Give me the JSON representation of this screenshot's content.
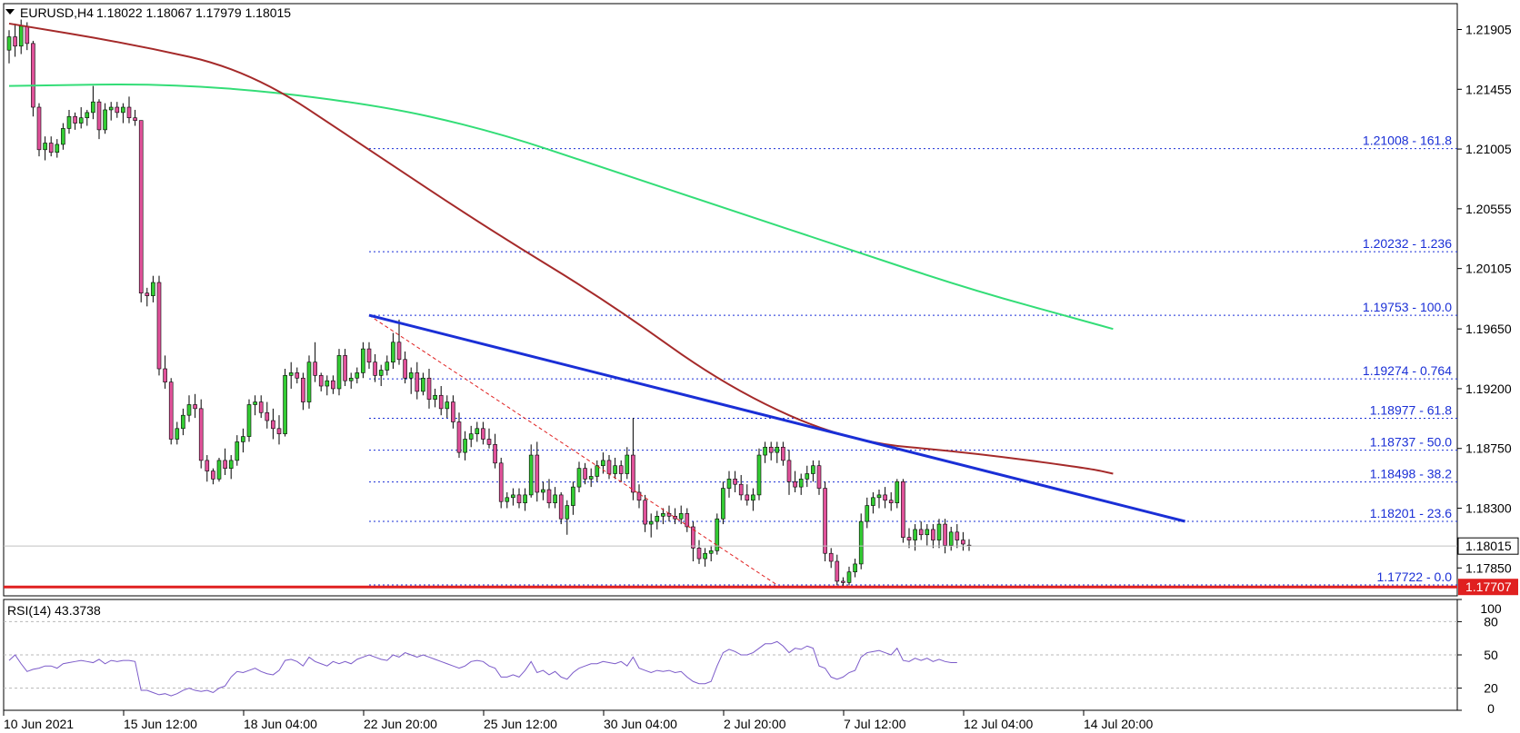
{
  "header": {
    "symbol": "EURUSD,H4",
    "ohlc": "1.18022 1.18067 1.17979 1.18015"
  },
  "rsi_label": "RSI(14) 43.3738",
  "current_price_label": "1.18015",
  "support_price_label": "1.17707",
  "colors": {
    "bull": "#33cc33",
    "bear": "#e0529a",
    "ma_fast": "#a52a2a",
    "ma_slow": "#33dd77",
    "trendline": "#1a2fd6",
    "fib": "#1a2fd6",
    "support": "#e02020",
    "rsi": "#7b5ac9"
  },
  "chart_data": {
    "type": "candlestick",
    "title": "EURUSD,H4",
    "price_axis": {
      "ylim": [
        1.1764,
        1.221
      ],
      "ticks": [
        "1.21905",
        "1.21455",
        "1.21005",
        "1.20555",
        "1.20105",
        "1.19650",
        "1.19200",
        "1.18750",
        "1.18300",
        "1.17850"
      ]
    },
    "time_axis": {
      "labels": [
        "10 Jun 2021",
        "15 Jun 12:00",
        "18 Jun 04:00",
        "22 Jun 20:00",
        "25 Jun 12:00",
        "30 Jun 04:00",
        "2 Jul 20:00",
        "7 Jul 12:00",
        "12 Jul 04:00",
        "14 Jul 20:00"
      ]
    },
    "candles": [
      [
        1.2175,
        1.219,
        1.2165,
        1.2185
      ],
      [
        1.2185,
        1.2195,
        1.217,
        1.2178
      ],
      [
        1.2178,
        1.2198,
        1.2172,
        1.2193
      ],
      [
        1.2193,
        1.2196,
        1.2175,
        1.218
      ],
      [
        1.218,
        1.2182,
        1.2125,
        1.2132
      ],
      [
        1.2132,
        1.2135,
        1.2095,
        1.21
      ],
      [
        1.21,
        1.211,
        1.2092,
        1.2105
      ],
      [
        1.2105,
        1.211,
        1.2095,
        1.2098
      ],
      [
        1.2098,
        1.2108,
        1.2094,
        1.2104
      ],
      [
        1.2104,
        1.212,
        1.21,
        1.2116
      ],
      [
        1.2116,
        1.213,
        1.2112,
        1.2125
      ],
      [
        1.2125,
        1.2128,
        1.2115,
        1.212
      ],
      [
        1.212,
        1.2132,
        1.2116,
        1.2124
      ],
      [
        1.2124,
        1.213,
        1.2118,
        1.2128
      ],
      [
        1.2128,
        1.2148,
        1.2123,
        1.2136
      ],
      [
        1.2136,
        1.2138,
        1.2108,
        1.2115
      ],
      [
        1.2115,
        1.2135,
        1.2112,
        1.213
      ],
      [
        1.213,
        1.2136,
        1.2122,
        1.2132
      ],
      [
        1.2132,
        1.2136,
        1.2124,
        1.2128
      ],
      [
        1.2128,
        1.2135,
        1.212,
        1.2132
      ],
      [
        1.2132,
        1.214,
        1.212,
        1.2124
      ],
      [
        1.2124,
        1.213,
        1.2118,
        1.2122
      ],
      [
        1.2122,
        1.2122,
        1.1985,
        1.1992
      ],
      [
        1.1992,
        1.1996,
        1.1982,
        1.199
      ],
      [
        1.199,
        1.2005,
        1.1985,
        1.2
      ],
      [
        1.2,
        1.2005,
        1.193,
        1.1935
      ],
      [
        1.1935,
        1.1945,
        1.192,
        1.1925
      ],
      [
        1.1925,
        1.1928,
        1.1878,
        1.1882
      ],
      [
        1.1882,
        1.1895,
        1.1878,
        1.189
      ],
      [
        1.189,
        1.1905,
        1.1885,
        1.19
      ],
      [
        1.19,
        1.1915,
        1.1895,
        1.1908
      ],
      [
        1.1908,
        1.1916,
        1.1898,
        1.1905
      ],
      [
        1.1905,
        1.1912,
        1.186,
        1.1866
      ],
      [
        1.1866,
        1.187,
        1.185,
        1.1858
      ],
      [
        1.1858,
        1.186,
        1.1848,
        1.1852
      ],
      [
        1.1852,
        1.1868,
        1.185,
        1.1866
      ],
      [
        1.1866,
        1.1875,
        1.1855,
        1.186
      ],
      [
        1.186,
        1.187,
        1.1852,
        1.1866
      ],
      [
        1.1866,
        1.1885,
        1.1862,
        1.188
      ],
      [
        1.188,
        1.189,
        1.1872,
        1.1884
      ],
      [
        1.1884,
        1.1912,
        1.188,
        1.1908
      ],
      [
        1.1908,
        1.1915,
        1.19,
        1.191
      ],
      [
        1.191,
        1.1915,
        1.1898,
        1.1902
      ],
      [
        1.1902,
        1.191,
        1.189,
        1.1896
      ],
      [
        1.1896,
        1.1905,
        1.1882,
        1.189
      ],
      [
        1.189,
        1.19,
        1.1878,
        1.1886
      ],
      [
        1.1886,
        1.1935,
        1.1884,
        1.193
      ],
      [
        1.193,
        1.194,
        1.192,
        1.1932
      ],
      [
        1.1932,
        1.1936,
        1.1924,
        1.1928
      ],
      [
        1.1928,
        1.1932,
        1.1904,
        1.191
      ],
      [
        1.191,
        1.1945,
        1.1905,
        1.194
      ],
      [
        1.194,
        1.1955,
        1.1925,
        1.193
      ],
      [
        1.193,
        1.1932,
        1.1918,
        1.1922
      ],
      [
        1.1922,
        1.193,
        1.1915,
        1.1926
      ],
      [
        1.1926,
        1.193,
        1.1916,
        1.192
      ],
      [
        1.192,
        1.195,
        1.1915,
        1.1945
      ],
      [
        1.1945,
        1.195,
        1.1922,
        1.1926
      ],
      [
        1.1926,
        1.1932,
        1.192,
        1.1928
      ],
      [
        1.1928,
        1.1936,
        1.1924,
        1.1932
      ],
      [
        1.1932,
        1.1955,
        1.1928,
        1.195
      ],
      [
        1.195,
        1.1955,
        1.1935,
        1.194
      ],
      [
        1.194,
        1.1946,
        1.1925,
        1.193
      ],
      [
        1.193,
        1.1938,
        1.1922,
        1.1934
      ],
      [
        1.1934,
        1.1945,
        1.193,
        1.194
      ],
      [
        1.194,
        1.1962,
        1.1935,
        1.1955
      ],
      [
        1.1955,
        1.1972,
        1.1938,
        1.1942
      ],
      [
        1.1942,
        1.1948,
        1.1924,
        1.1928
      ],
      [
        1.1928,
        1.1936,
        1.1916,
        1.1932
      ],
      [
        1.1932,
        1.194,
        1.1912,
        1.1918
      ],
      [
        1.1918,
        1.1932,
        1.1915,
        1.1928
      ],
      [
        1.1928,
        1.1935,
        1.1905,
        1.1912
      ],
      [
        1.1912,
        1.192,
        1.1906,
        1.1915
      ],
      [
        1.1915,
        1.1922,
        1.19,
        1.1905
      ],
      [
        1.1905,
        1.1915,
        1.1898,
        1.191
      ],
      [
        1.191,
        1.1915,
        1.189,
        1.1895
      ],
      [
        1.1895,
        1.1902,
        1.1868,
        1.1872
      ],
      [
        1.1872,
        1.1888,
        1.1866,
        1.1882
      ],
      [
        1.1882,
        1.1892,
        1.1876,
        1.1886
      ],
      [
        1.1886,
        1.1895,
        1.188,
        1.189
      ],
      [
        1.189,
        1.1895,
        1.1878,
        1.1882
      ],
      [
        1.1882,
        1.189,
        1.1875,
        1.1878
      ],
      [
        1.1878,
        1.1886,
        1.186,
        1.1864
      ],
      [
        1.1864,
        1.1868,
        1.183,
        1.1835
      ],
      [
        1.1835,
        1.1842,
        1.183,
        1.1838
      ],
      [
        1.1838,
        1.1845,
        1.1832,
        1.184
      ],
      [
        1.184,
        1.1845,
        1.183,
        1.1834
      ],
      [
        1.1834,
        1.1845,
        1.1828,
        1.184
      ],
      [
        1.184,
        1.1878,
        1.1838,
        1.187
      ],
      [
        1.187,
        1.188,
        1.1835,
        1.1842
      ],
      [
        1.1842,
        1.185,
        1.1836,
        1.1844
      ],
      [
        1.1844,
        1.1852,
        1.183,
        1.1834
      ],
      [
        1.1834,
        1.1846,
        1.183,
        1.184
      ],
      [
        1.184,
        1.1842,
        1.1818,
        1.1822
      ],
      [
        1.1822,
        1.1836,
        1.181,
        1.1832
      ],
      [
        1.1832,
        1.185,
        1.1825,
        1.1846
      ],
      [
        1.1846,
        1.1865,
        1.1842,
        1.186
      ],
      [
        1.186,
        1.1864,
        1.1848,
        1.1852
      ],
      [
        1.1852,
        1.186,
        1.1846,
        1.1854
      ],
      [
        1.1854,
        1.1866,
        1.185,
        1.1862
      ],
      [
        1.1862,
        1.1872,
        1.1856,
        1.1866
      ],
      [
        1.1866,
        1.187,
        1.1852,
        1.1856
      ],
      [
        1.1856,
        1.1868,
        1.1852,
        1.1862
      ],
      [
        1.1862,
        1.1866,
        1.185,
        1.1856
      ],
      [
        1.1856,
        1.1876,
        1.1852,
        1.187
      ],
      [
        1.187,
        1.1898,
        1.1836,
        1.1842
      ],
      [
        1.1842,
        1.1848,
        1.183,
        1.1836
      ],
      [
        1.1836,
        1.184,
        1.1812,
        1.1818
      ],
      [
        1.1818,
        1.1826,
        1.1808,
        1.182
      ],
      [
        1.182,
        1.1828,
        1.1814,
        1.1824
      ],
      [
        1.1824,
        1.183,
        1.1818,
        1.1826
      ],
      [
        1.1826,
        1.1832,
        1.182,
        1.1824
      ],
      [
        1.1824,
        1.183,
        1.1818,
        1.1822
      ],
      [
        1.1822,
        1.1832,
        1.1818,
        1.1826
      ],
      [
        1.1826,
        1.183,
        1.1812,
        1.1816
      ],
      [
        1.1816,
        1.182,
        1.179,
        1.18
      ],
      [
        1.18,
        1.1806,
        1.1788,
        1.1792
      ],
      [
        1.1792,
        1.18,
        1.1786,
        1.1796
      ],
      [
        1.1796,
        1.1802,
        1.179,
        1.1798
      ],
      [
        1.1798,
        1.1826,
        1.1795,
        1.1822
      ],
      [
        1.1822,
        1.185,
        1.1818,
        1.1845
      ],
      [
        1.1845,
        1.1858,
        1.1838,
        1.1852
      ],
      [
        1.1852,
        1.1858,
        1.1842,
        1.1848
      ],
      [
        1.1848,
        1.1855,
        1.1836,
        1.184
      ],
      [
        1.184,
        1.1848,
        1.1832,
        1.1836
      ],
      [
        1.1836,
        1.1845,
        1.1828,
        1.184
      ],
      [
        1.184,
        1.1875,
        1.1836,
        1.187
      ],
      [
        1.187,
        1.188,
        1.1864,
        1.1876
      ],
      [
        1.1876,
        1.188,
        1.1866,
        1.1872
      ],
      [
        1.1872,
        1.188,
        1.1864,
        1.1876
      ],
      [
        1.1876,
        1.188,
        1.1862,
        1.1866
      ],
      [
        1.1866,
        1.1874,
        1.184,
        1.185
      ],
      [
        1.185,
        1.1858,
        1.1842,
        1.1846
      ],
      [
        1.1846,
        1.1856,
        1.184,
        1.1852
      ],
      [
        1.1852,
        1.1862,
        1.1846,
        1.1856
      ],
      [
        1.1856,
        1.1866,
        1.185,
        1.1862
      ],
      [
        1.1862,
        1.1866,
        1.184,
        1.1845
      ],
      [
        1.1845,
        1.185,
        1.179,
        1.1796
      ],
      [
        1.1796,
        1.18,
        1.1785,
        1.179
      ],
      [
        1.179,
        1.1795,
        1.1772,
        1.1775
      ],
      [
        1.1775,
        1.1778,
        1.177,
        1.1774
      ],
      [
        1.1774,
        1.1786,
        1.1772,
        1.1782
      ],
      [
        1.1782,
        1.1792,
        1.1778,
        1.1788
      ],
      [
        1.1788,
        1.1826,
        1.1784,
        1.182
      ],
      [
        1.182,
        1.1838,
        1.1815,
        1.1832
      ],
      [
        1.1832,
        1.1842,
        1.1826,
        1.1838
      ],
      [
        1.1838,
        1.1844,
        1.183,
        1.184
      ],
      [
        1.184,
        1.1846,
        1.183,
        1.1836
      ],
      [
        1.1836,
        1.1842,
        1.1828,
        1.1834
      ],
      [
        1.1834,
        1.1852,
        1.183,
        1.185
      ],
      [
        1.185,
        1.1852,
        1.1804,
        1.1808
      ],
      [
        1.1808,
        1.1815,
        1.18,
        1.1806
      ],
      [
        1.1806,
        1.1818,
        1.1798,
        1.1814
      ],
      [
        1.1814,
        1.182,
        1.1806,
        1.181
      ],
      [
        1.181,
        1.1818,
        1.1802,
        1.1814
      ],
      [
        1.1814,
        1.1818,
        1.18,
        1.1806
      ],
      [
        1.1806,
        1.1822,
        1.18,
        1.1818
      ],
      [
        1.1818,
        1.1822,
        1.1796,
        1.1802
      ],
      [
        1.1802,
        1.1816,
        1.1798,
        1.1812
      ],
      [
        1.1812,
        1.1818,
        1.18,
        1.1806
      ],
      [
        1.1806,
        1.1812,
        1.1798,
        1.1803
      ],
      [
        1.18022,
        1.18067,
        1.17979,
        1.18015
      ]
    ],
    "ma_fast": {
      "x": [
        0,
        20,
        40,
        60,
        80,
        100,
        120,
        140,
        160,
        180,
        184
      ],
      "y": [
        1.2195,
        1.218,
        1.216,
        1.21,
        1.204,
        1.1985,
        1.192,
        1.188,
        1.1872,
        1.186,
        1.1856
      ]
    },
    "ma_slow": {
      "x": [
        0,
        30,
        60,
        80,
        100,
        120,
        140,
        160,
        180,
        184
      ],
      "y": [
        1.2148,
        1.215,
        1.2135,
        1.2115,
        1.2085,
        1.2055,
        1.2025,
        1.1995,
        1.197,
        1.1965
      ]
    },
    "trendline": {
      "x": [
        60,
        196
      ],
      "y": [
        1.19753,
        1.18201
      ]
    },
    "swing_line": {
      "x": [
        60,
        128
      ],
      "y": [
        1.19753,
        1.17722
      ]
    },
    "fibonacci": [
      {
        "price": 1.21008,
        "label": "1.21008 - 161.8"
      },
      {
        "price": 1.20232,
        "label": "1.20232 - 1.236"
      },
      {
        "price": 1.19753,
        "label": "1.19753 - 100.0"
      },
      {
        "price": 1.19274,
        "label": "1.19274 - 0.764"
      },
      {
        "price": 1.18977,
        "label": "1.18977 - 61.8"
      },
      {
        "price": 1.18737,
        "label": "1.18737 - 50.0"
      },
      {
        "price": 1.18498,
        "label": "1.18498 - 38.2"
      },
      {
        "price": 1.18201,
        "label": "1.18201 - 23.6"
      },
      {
        "price": 1.17722,
        "label": "1.17722 - 0.0"
      }
    ],
    "support_level": 1.17707,
    "current_price": 1.18015,
    "rsi": {
      "period": 14,
      "value": 43.3738,
      "ylim": [
        0,
        100
      ],
      "levels": [
        80,
        50,
        20
      ],
      "tick_labels": [
        "100",
        "80",
        "50",
        "20",
        "0"
      ],
      "values": [
        45,
        50,
        42,
        35,
        37,
        38,
        40,
        40,
        38,
        42,
        43,
        44,
        45,
        44,
        43,
        46,
        42,
        45,
        44,
        45,
        45,
        44,
        18,
        18,
        16,
        14,
        15,
        13,
        15,
        18,
        20,
        18,
        17,
        18,
        16,
        20,
        22,
        30,
        35,
        34,
        36,
        38,
        35,
        33,
        32,
        36,
        45,
        46,
        44,
        40,
        48,
        44,
        42,
        40,
        44,
        42,
        44,
        42,
        46,
        48,
        50,
        48,
        46,
        45,
        50,
        48,
        52,
        50,
        48,
        50,
        48,
        46,
        44,
        42,
        40,
        38,
        40,
        44,
        45,
        44,
        40,
        38,
        30,
        30,
        32,
        30,
        36,
        44,
        34,
        36,
        32,
        35,
        30,
        28,
        34,
        38,
        40,
        42,
        42,
        44,
        43,
        42,
        44,
        40,
        48,
        38,
        36,
        34,
        36,
        35,
        36,
        34,
        35,
        30,
        26,
        24,
        24,
        26,
        40,
        52,
        55,
        53,
        50,
        50,
        52,
        56,
        60,
        60,
        62,
        58,
        52,
        56,
        55,
        58,
        56,
        40,
        38,
        30,
        28,
        30,
        34,
        36,
        48,
        52,
        53,
        54,
        52,
        50,
        56,
        45,
        44,
        47,
        45,
        47,
        44,
        46,
        44,
        43,
        43
      ]
    }
  }
}
